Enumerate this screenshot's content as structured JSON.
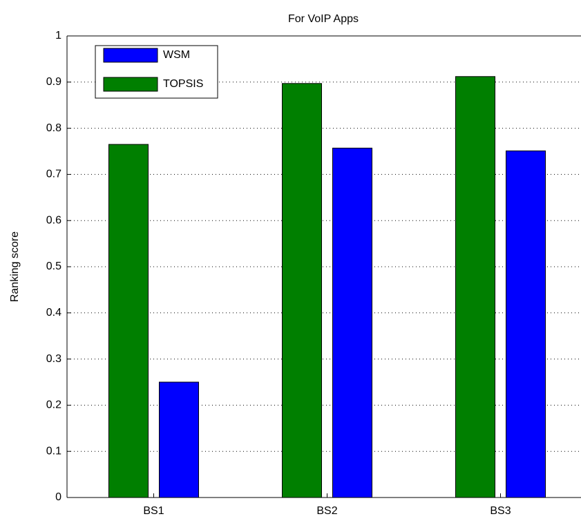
{
  "chart_data": {
    "type": "bar",
    "title": "For VoIP Apps",
    "ylabel": "Ranking score",
    "categories": [
      "BS1",
      "BS2",
      "BS3"
    ],
    "series": [
      {
        "name": "WSM",
        "color": "#0000ff",
        "values": [
          0.25,
          0.757,
          0.751
        ]
      },
      {
        "name": "TOPSIS",
        "color": "#007f00",
        "values": [
          0.765,
          0.897,
          0.912
        ]
      }
    ],
    "ylim": [
      0,
      1
    ],
    "yticks": [
      0,
      0.1,
      0.2,
      0.3,
      0.4,
      0.5,
      0.6,
      0.7,
      0.8,
      0.9,
      1
    ],
    "grid": true,
    "legend": "upper left"
  }
}
